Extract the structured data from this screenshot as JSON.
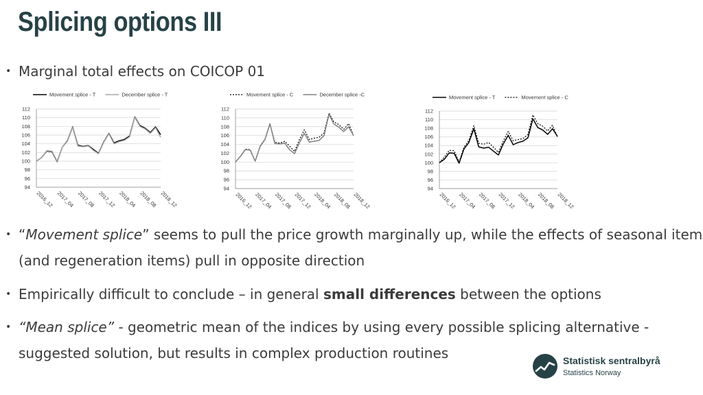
{
  "slide": {
    "title": "Splicing options III",
    "bullets": [
      {
        "text": "Marginal total effects on COICOP 01"
      },
      {
        "parts": [
          {
            "t": "“",
            "s": "n"
          },
          {
            "t": "Movement splice",
            "s": "i"
          },
          {
            "t": "” seems to pull the price growth marginally up, while the effects of seasonal items",
            "s": "n"
          },
          {
            "t": "(and regeneration items) pull in opposite direction",
            "s": "br"
          }
        ]
      },
      {
        "parts": [
          {
            "t": "Empirically difficult to conclude – in general ",
            "s": "n"
          },
          {
            "t": "small differences",
            "s": "b"
          },
          {
            "t": " between the options",
            "s": "n"
          }
        ]
      },
      {
        "parts": [
          {
            "t": "“Mean splice”",
            "s": "i"
          },
          {
            "t": "  - geometric mean of the indices by using every possible splicing alternative -",
            "s": "n"
          },
          {
            "t": "suggested solution, but results in complex production routines",
            "s": "br"
          }
        ]
      }
    ],
    "bullet_symbol": "•"
  },
  "logo": {
    "line1": "Statistisk sentralbyrå",
    "line2": "Statistics Norway",
    "color": "#274247"
  },
  "chart_data": [
    {
      "type": "line",
      "x": [
        "2016_12",
        "2017_01",
        "2017_02",
        "2017_03",
        "2017_04",
        "2017_05",
        "2017_06",
        "2017_07",
        "2017_08",
        "2017_09",
        "2017_10",
        "2017_11",
        "2017_12",
        "2018_01",
        "2018_02",
        "2018_03",
        "2018_04",
        "2018_05",
        "2018_06",
        "2018_07",
        "2018_08",
        "2018_09",
        "2018_10",
        "2018_11",
        "2018_12"
      ],
      "xticks": [
        "2016_12",
        "2017_04",
        "2017_08",
        "2017_12",
        "2018_04",
        "2018_08",
        "2018_12"
      ],
      "ylim": [
        94,
        112
      ],
      "yticks": [
        94,
        96,
        98,
        100,
        102,
        104,
        106,
        108,
        110,
        112
      ],
      "grid": true,
      "legend": "top",
      "series": [
        {
          "name": "Movement splice - T",
          "color": "#000000",
          "dash": "",
          "width": 1.5,
          "values": [
            100,
            100.8,
            102.3,
            102.2,
            99.9,
            103.2,
            104.7,
            107.9,
            103.7,
            103.4,
            103.6,
            102.7,
            101.8,
            104.4,
            106.4,
            104.2,
            104.7,
            105,
            105.8,
            110.2,
            108.2,
            107.6,
            106.6,
            107.9,
            106.1
          ]
        },
        {
          "name": "December splice - T",
          "color": "#a6a6a6",
          "dash": "",
          "width": 1.5,
          "values": [
            100,
            100.8,
            102.4,
            102.3,
            100,
            103.2,
            104.6,
            107.8,
            103.5,
            103.3,
            103.5,
            102.5,
            101.7,
            104.3,
            106.3,
            104,
            104.5,
            104.8,
            105.6,
            110.1,
            108,
            107.4,
            106.4,
            107.7,
            105.5
          ]
        }
      ]
    },
    {
      "type": "line",
      "x": [
        "2016_12",
        "2017_01",
        "2017_02",
        "2017_03",
        "2017_04",
        "2017_05",
        "2017_06",
        "2017_07",
        "2017_08",
        "2017_09",
        "2017_10",
        "2017_11",
        "2017_12",
        "2018_01",
        "2018_02",
        "2018_03",
        "2018_04",
        "2018_05",
        "2018_06",
        "2018_07",
        "2018_08",
        "2018_09",
        "2018_10",
        "2018_11",
        "2018_12"
      ],
      "xticks": [
        "2016_12",
        "2017_04",
        "2017_08",
        "2017_12",
        "2018_04",
        "2018_08",
        "2018_12"
      ],
      "ylim": [
        94,
        112
      ],
      "yticks": [
        94,
        96,
        98,
        100,
        102,
        104,
        106,
        108,
        110,
        112
      ],
      "grid": true,
      "legend": "top",
      "series": [
        {
          "name": "Movement splice - C",
          "color": "#000000",
          "dash": "2,2",
          "width": 1.2,
          "values": [
            100,
            101.3,
            102.9,
            102.8,
            100.2,
            103.6,
            105.2,
            108.6,
            104.5,
            104.3,
            104.7,
            103.6,
            102.4,
            105.1,
            107.3,
            105.1,
            105.4,
            105.6,
            106.6,
            111.1,
            109.1,
            108.5,
            107.4,
            108.7,
            106
          ]
        },
        {
          "name": "December splice -C",
          "color": "#808080",
          "dash": "",
          "width": 1.5,
          "values": [
            100,
            101.3,
            102.8,
            102.7,
            100.2,
            103.5,
            105.1,
            108.7,
            104.2,
            104.1,
            104.3,
            102.8,
            101.9,
            104.4,
            106.5,
            104.5,
            104.7,
            104.9,
            106,
            110.8,
            108.6,
            107.9,
            106.9,
            108,
            106
          ]
        }
      ]
    },
    {
      "type": "line",
      "x": [
        "2016_12",
        "2017_01",
        "2017_02",
        "2017_03",
        "2017_04",
        "2017_05",
        "2017_06",
        "2017_07",
        "2017_08",
        "2017_09",
        "2017_10",
        "2017_11",
        "2017_12",
        "2018_01",
        "2018_02",
        "2018_03",
        "2018_04",
        "2018_05",
        "2018_06",
        "2018_07",
        "2018_08",
        "2018_09",
        "2018_10",
        "2018_11",
        "2018_12"
      ],
      "xticks": [
        "2016_12",
        "2017_04",
        "2017_08",
        "2017_12",
        "2018_04",
        "2018_08",
        "2018_12"
      ],
      "ylim": [
        94,
        112
      ],
      "yticks": [
        94,
        96,
        98,
        100,
        102,
        104,
        106,
        108,
        110,
        112
      ],
      "grid": true,
      "legend": "top",
      "series": [
        {
          "name": "Movement splice - T",
          "color": "#000000",
          "dash": "",
          "width": 1.5,
          "values": [
            100,
            100.8,
            102.3,
            102.2,
            99.9,
            103.2,
            104.7,
            107.9,
            103.7,
            103.4,
            103.6,
            102.7,
            101.8,
            104.4,
            106.4,
            104.2,
            104.7,
            105,
            105.8,
            110.2,
            108.2,
            107.6,
            106.6,
            107.9,
            106.1
          ]
        },
        {
          "name": "Movement splice - C",
          "color": "#000000",
          "dash": "2,2",
          "width": 1.2,
          "values": [
            100,
            101.3,
            102.9,
            102.8,
            100.2,
            103.6,
            105.2,
            108.6,
            104.5,
            104.3,
            104.7,
            103.6,
            102.4,
            105.1,
            107.3,
            105.1,
            105.4,
            105.6,
            106.6,
            111.1,
            109.1,
            108.5,
            107.4,
            108.7,
            106
          ]
        }
      ]
    }
  ]
}
